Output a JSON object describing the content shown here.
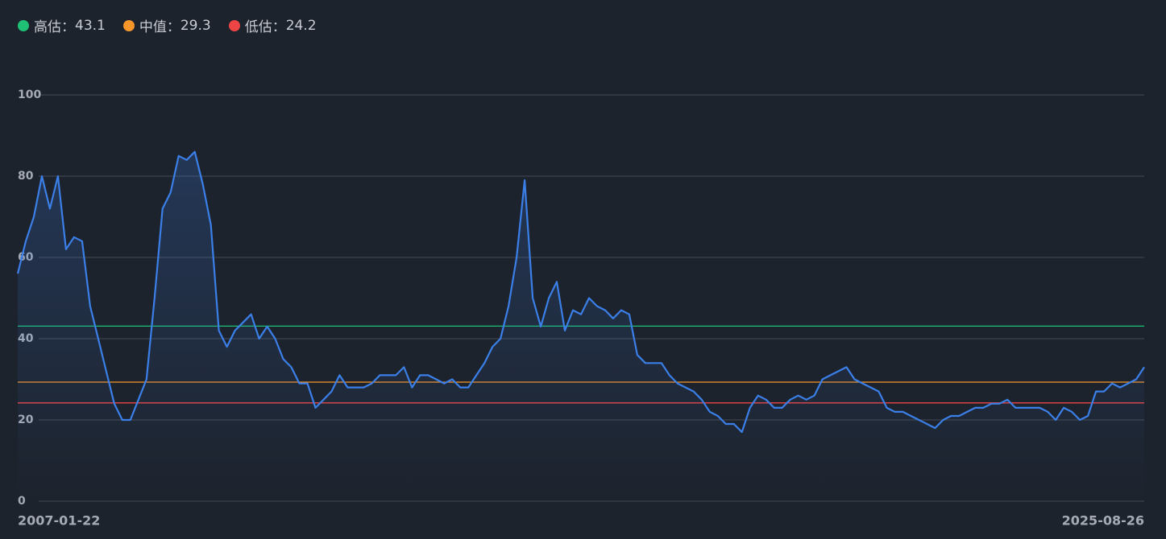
{
  "chart_data": {
    "type": "line",
    "legend": [
      {
        "name": "高估：",
        "value": 43.1,
        "color": "#1fbf75"
      },
      {
        "name": "中值：",
        "value": 29.3,
        "color": "#f7962b"
      },
      {
        "name": "低估：",
        "value": 24.2,
        "color": "#ee4444"
      }
    ],
    "categories": [
      "2007-01-22",
      null,
      null,
      null,
      null,
      null,
      null,
      null,
      null,
      null,
      null,
      null,
      null,
      null,
      null,
      null,
      null,
      null,
      null,
      null,
      null,
      null,
      null,
      null,
      null,
      null,
      null,
      null,
      null,
      null,
      null,
      null,
      null,
      null,
      null,
      null,
      null,
      null,
      null,
      null,
      null,
      null,
      null,
      null,
      null,
      null,
      null,
      null,
      null,
      null,
      null,
      null,
      null,
      null,
      null,
      null,
      null,
      null,
      null,
      null,
      null,
      null,
      null,
      null,
      null,
      null,
      null,
      null,
      null,
      null,
      null,
      null,
      null,
      null,
      null,
      null,
      null,
      null,
      null,
      null,
      null,
      null,
      null,
      null,
      null,
      null,
      null,
      null,
      null,
      null,
      null,
      null,
      null,
      null,
      null,
      null,
      null,
      null,
      null,
      null,
      null,
      null,
      null,
      null,
      null,
      null,
      null,
      null,
      null,
      null,
      null,
      null,
      null,
      null,
      null,
      null,
      null,
      null,
      null,
      null,
      null,
      null,
      null,
      null,
      null,
      null,
      null,
      null,
      null,
      null,
      null,
      null,
      null,
      null,
      null,
      null,
      null,
      null,
      null,
      null,
      "2025-08-26"
    ],
    "series": [
      {
        "color": "#3b7fe8",
        "values": [
          56,
          64,
          70,
          80,
          72,
          80,
          62,
          65,
          64,
          48,
          40,
          32,
          24,
          20,
          20,
          25,
          30,
          50,
          72,
          76,
          85,
          84,
          86,
          78,
          68,
          42,
          38,
          42,
          44,
          46,
          40,
          43,
          40,
          35,
          33,
          29,
          29,
          23,
          25,
          27,
          31,
          28,
          28,
          28,
          29,
          31,
          31,
          31,
          33,
          28,
          31,
          31,
          30,
          29,
          30,
          28,
          28,
          31,
          34,
          38,
          40,
          48,
          60,
          79,
          50,
          43,
          50,
          54,
          42,
          47,
          46,
          50,
          48,
          47,
          45,
          47,
          46,
          36,
          34,
          34,
          34,
          31,
          29,
          28,
          27,
          25,
          22,
          21,
          19,
          19,
          17,
          23,
          26,
          25,
          23,
          23,
          25,
          26,
          25,
          26,
          30,
          31,
          32,
          33,
          30,
          29,
          28,
          27,
          23,
          22,
          22,
          21,
          20,
          19,
          18,
          20,
          21,
          21,
          22,
          23,
          23,
          24,
          24,
          25,
          23,
          23,
          23,
          23,
          22,
          20,
          23,
          22,
          20,
          21,
          27,
          27,
          29,
          28,
          29,
          30,
          33
        ]
      }
    ],
    "ylim": [
      0,
      100
    ],
    "yticks": [
      0,
      20,
      40,
      60,
      80,
      100
    ],
    "grid": true
  }
}
